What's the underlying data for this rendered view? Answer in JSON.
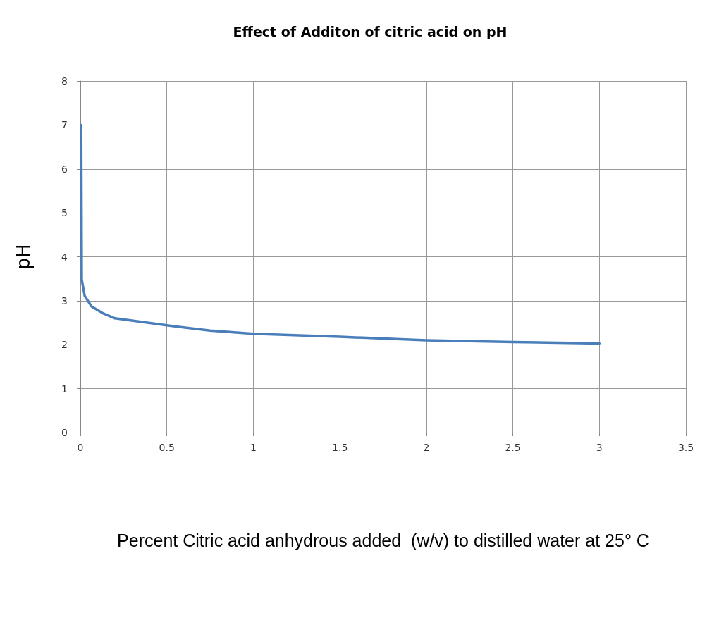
{
  "chart_data": {
    "type": "line",
    "title": "Effect of Additon of citric acid on pH",
    "xlabel": "Percent Citric acid anhydrous added  (w/v) to distilled water at 25° C",
    "ylabel": "pH",
    "x": [
      0.005,
      0.008,
      0.025,
      0.065,
      0.133,
      0.2,
      0.5,
      0.75,
      1,
      1.5,
      2,
      2.5,
      3
    ],
    "series": [
      {
        "color": "#4a7ebb",
        "values": [
          7,
          3.48,
          3.11,
          2.87,
          2.71,
          2.6,
          2.44,
          2.32,
          2.25,
          2.18,
          2.1,
          2.06,
          2.03
        ]
      }
    ],
    "xlim": [
      0,
      3.5
    ],
    "xticks": [
      0,
      0.5,
      1,
      1.5,
      2,
      2.5,
      3,
      3.5
    ],
    "ylim": [
      0,
      8
    ],
    "yticks": [
      0,
      1,
      2,
      3,
      4,
      5,
      6,
      7,
      8
    ],
    "grid": true,
    "marker": "none",
    "line_style": "solid"
  }
}
